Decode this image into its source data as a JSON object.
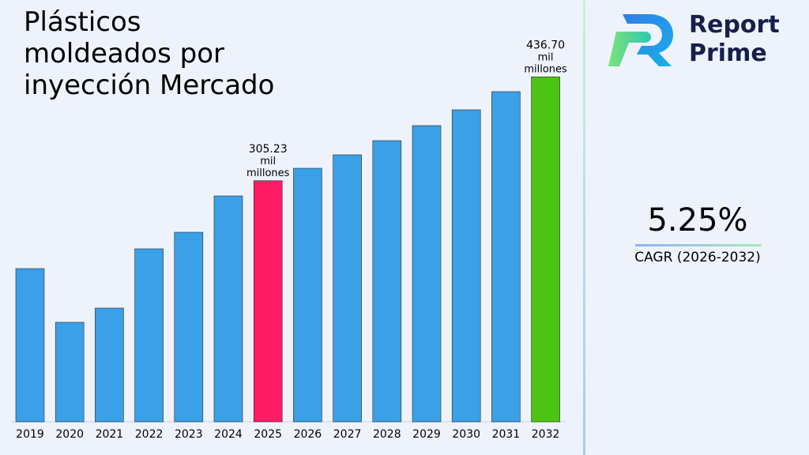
{
  "title_lines": [
    "Plásticos",
    "moldeados por",
    "inyección Mercado"
  ],
  "brand": {
    "name_line1": "Report",
    "name_line2": "Prime"
  },
  "cagr": {
    "value": "5.25%",
    "label": "CAGR (2026-2032)"
  },
  "colors": {
    "default": "#3aa0e8",
    "highlight_2025": "#ff1a66",
    "highlight_2032": "#4cc414",
    "brand_dark": "#16204a"
  },
  "chart_data": {
    "type": "bar",
    "categories": [
      "2019",
      "2020",
      "2021",
      "2022",
      "2023",
      "2024",
      "2025",
      "2026",
      "2027",
      "2028",
      "2029",
      "2030",
      "2031",
      "2032"
    ],
    "values": [
      194,
      126,
      144,
      219,
      240,
      286,
      305.23,
      321,
      338,
      356,
      375,
      395,
      418,
      436.7
    ],
    "annotations": [
      {
        "category": "2025",
        "lines": [
          "305.23",
          "mil",
          "millones"
        ]
      },
      {
        "category": "2032",
        "lines": [
          "436.70",
          "mil",
          "millones"
        ]
      }
    ],
    "bar_colors": {
      "2025": "#ff1a66",
      "2032": "#4cc414"
    },
    "default_color": "#3aa0e8",
    "ylim": [
      0,
      500
    ]
  }
}
